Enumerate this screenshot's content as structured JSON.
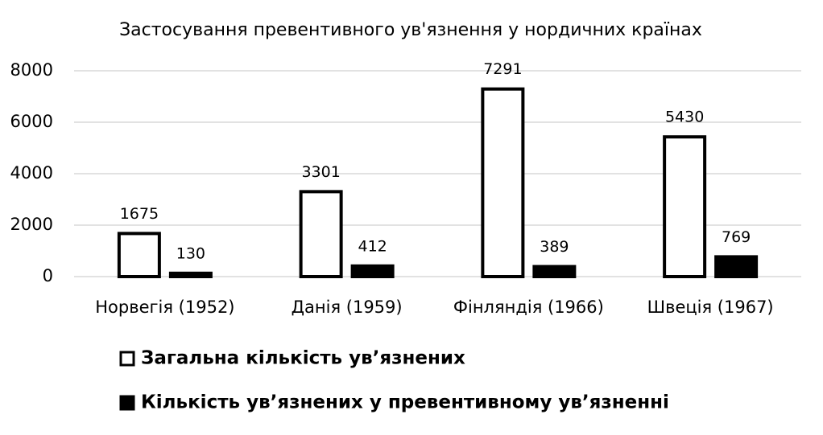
{
  "chart_data": {
    "type": "bar",
    "title": "Застосування превентивного ув'язнення у нордичних країнах",
    "categories": [
      "Норвегія (1952)",
      "Данія (1959)",
      "Фінляндія (1966)",
      "Швеція (1967)"
    ],
    "series": [
      {
        "name": "Загальна кількість ув’язнених",
        "color": "#ffffff",
        "values": [
          1675,
          3301,
          7291,
          5430
        ]
      },
      {
        "name": "Кількість ув’язнених у превентивному ув’язненні",
        "color": "#000000",
        "values": [
          130,
          412,
          389,
          769
        ]
      }
    ],
    "edgecolor": "#000000",
    "ylim": [
      0,
      8000
    ],
    "yticks": [
      0,
      2000,
      4000,
      6000,
      8000
    ],
    "grid": true,
    "legend": "bottom"
  }
}
